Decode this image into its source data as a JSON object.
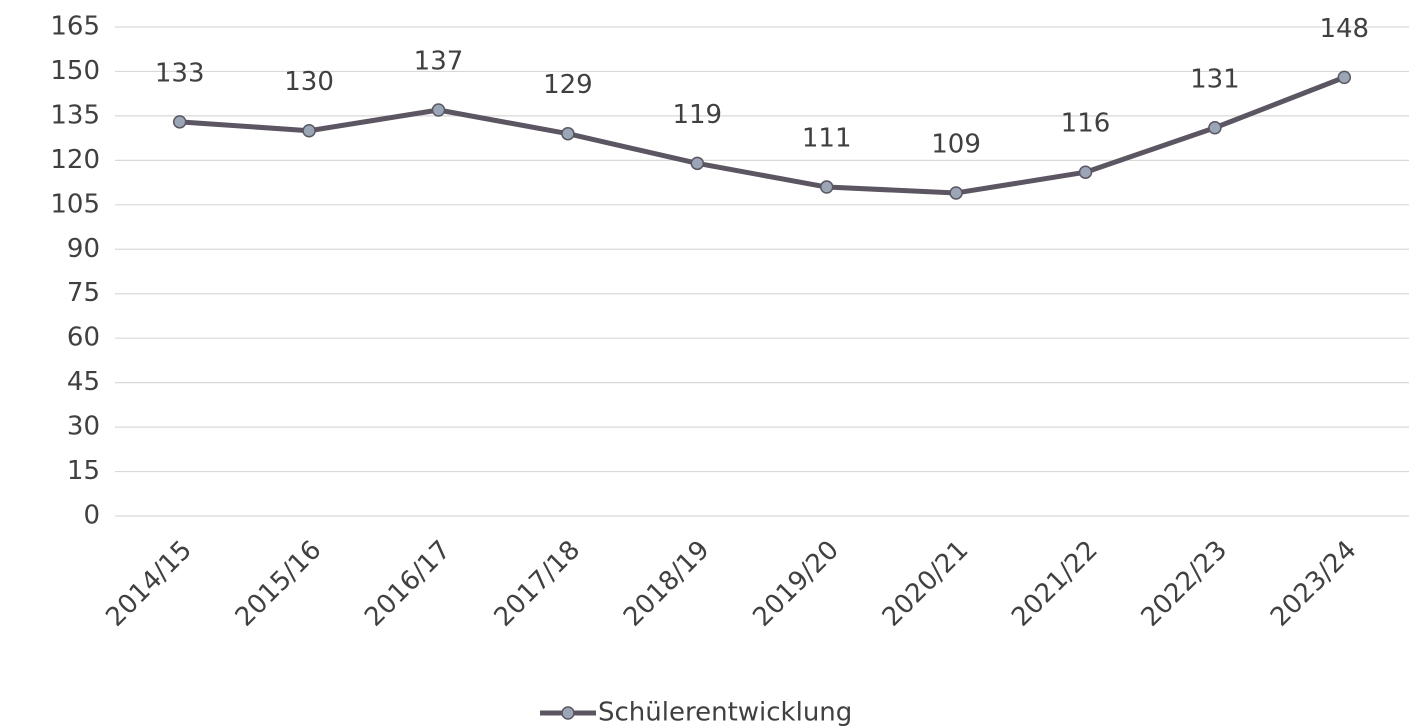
{
  "chart_data": {
    "type": "line",
    "categories": [
      "2014/15",
      "2015/16",
      "2016/17",
      "2017/18",
      "2018/19",
      "2019/20",
      "2020/21",
      "2021/22",
      "2022/23",
      "2023/24"
    ],
    "series": [
      {
        "name": "Schülerentwicklung",
        "color": "#5b5662",
        "marker_color": "#9aa6b6",
        "values": [
          133,
          130,
          137,
          129,
          119,
          111,
          109,
          116,
          131,
          148
        ]
      }
    ],
    "ylim": [
      0,
      165
    ],
    "yticks": [
      0,
      15,
      30,
      45,
      60,
      75,
      90,
      105,
      120,
      135,
      150,
      165
    ],
    "grid": true,
    "legend": "bottom"
  }
}
